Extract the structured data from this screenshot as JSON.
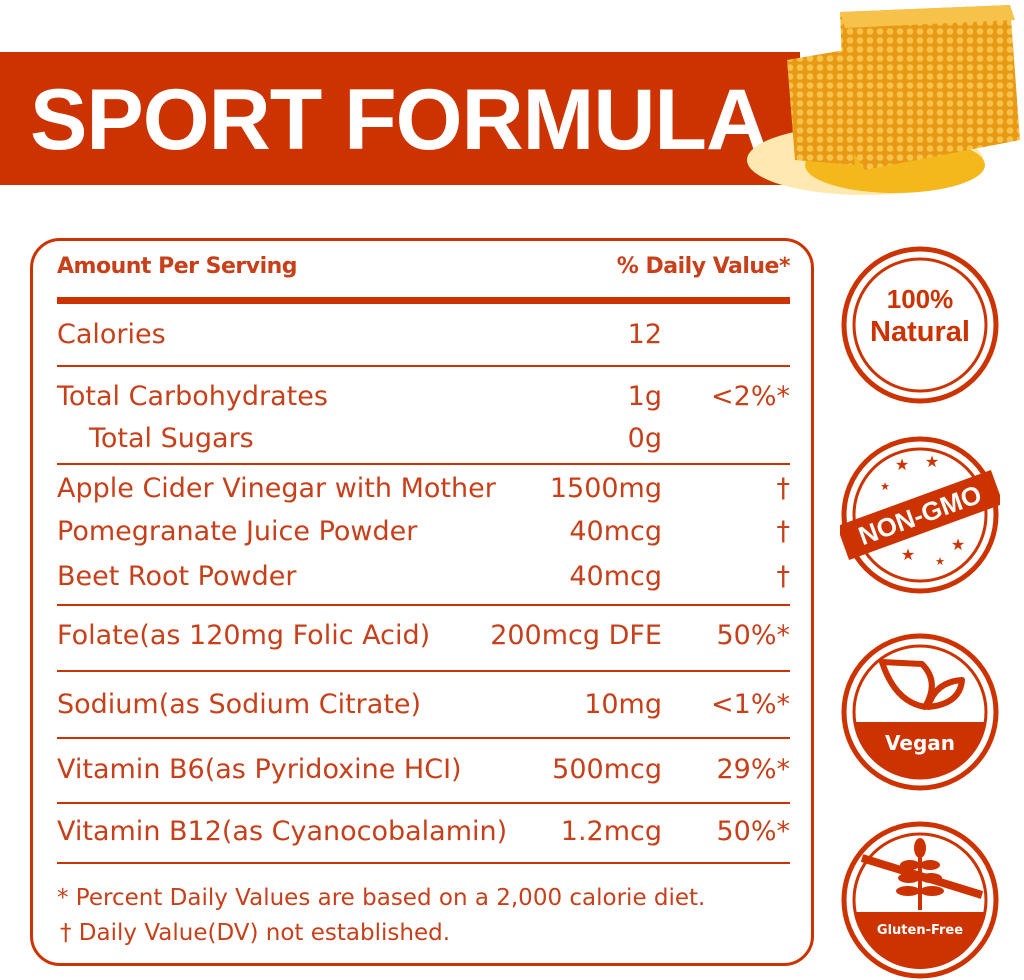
{
  "title": "SPORT FORMULA",
  "colors": {
    "brand": "#cc3300",
    "text": "#c8401a",
    "honey": "#f2a516"
  },
  "table": {
    "header_left": "Amount Per Serving",
    "header_right": "% Daily Value*",
    "rows": [
      {
        "name": "Calories",
        "amount": "12",
        "dv": ""
      },
      {
        "name": "Total Carbohydrates",
        "amount": "1g",
        "dv": "<2%*"
      },
      {
        "name": "Total Sugars",
        "amount": "0g",
        "dv": ""
      },
      {
        "name": "Apple Cider Vinegar with Mother",
        "amount": "1500mg",
        "dv": "†"
      },
      {
        "name": "Pomegranate Juice Powder",
        "amount": "40mcg",
        "dv": "†"
      },
      {
        "name": "Beet Root Powder",
        "amount": "40mcg",
        "dv": "†"
      },
      {
        "name": "Folate(as 120mg Folic Acid)",
        "amount": "200mcg DFE",
        "dv": "50%*"
      },
      {
        "name": "Sodium(as Sodium Citrate)",
        "amount": "10mg",
        "dv": "<1%*"
      },
      {
        "name": "Vitamin B6(as Pyridoxine HCI)",
        "amount": "500mcg",
        "dv": "29%*"
      },
      {
        "name": "Vitamin B12(as Cyanocobalamin)",
        "amount": "1.2mcg",
        "dv": "50%*"
      }
    ],
    "footnotes": [
      "* Percent Daily Values are based on a 2,000 calorie diet.",
      "† Daily Value(DV) not established."
    ]
  },
  "badges": {
    "natural_line1": "100%",
    "natural_line2": "Natural",
    "non_gmo": "NON-GMO",
    "vegan": "Vegan",
    "gluten_free": "Gluten-Free"
  }
}
